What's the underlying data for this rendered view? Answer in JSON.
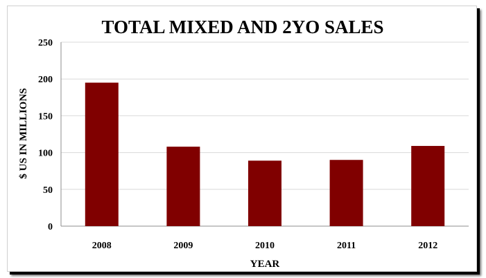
{
  "chart_data": {
    "type": "bar",
    "title": "TOTAL MIXED AND 2YO SALES",
    "xlabel": "YEAR",
    "ylabel": "$ US IN MILLIONS",
    "categories": [
      "2008",
      "2009",
      "2010",
      "2011",
      "2012"
    ],
    "values": [
      195,
      108,
      89,
      90,
      109
    ],
    "ylim": [
      0,
      250
    ],
    "yticks": [
      0,
      50,
      100,
      150,
      200,
      250
    ],
    "grid": true,
    "legend": "none",
    "bar_color": "#800000"
  }
}
